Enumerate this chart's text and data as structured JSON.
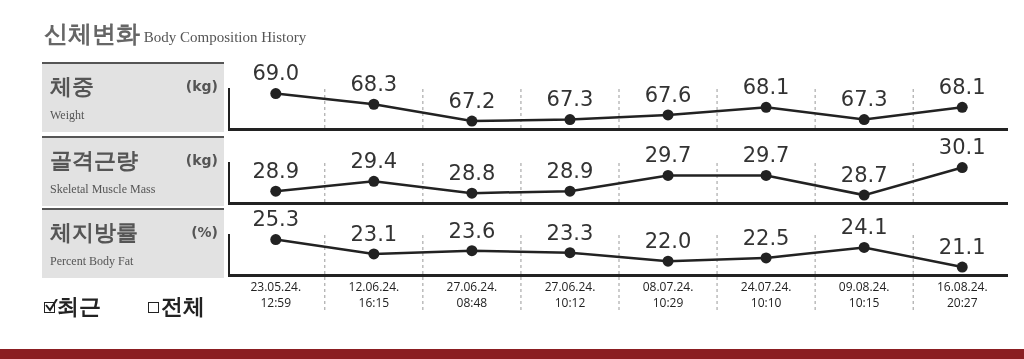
{
  "chart_data": [
    {
      "type": "line",
      "title": "신체변화",
      "subtitle": "Body Composition History",
      "ylabel": "체중",
      "annotations": [
        "(kg)",
        "Weight"
      ],
      "categories": [
        null,
        null,
        null,
        null,
        null,
        null,
        null,
        null
      ],
      "series": [
        {
          "color": "#222222",
          "values": [
            69.0,
            68.3,
            67.2,
            67.3,
            67.6,
            68.1,
            67.3,
            68.1
          ],
          "value_labels": [
            "69.0",
            "68.3",
            "67.2",
            "67.3",
            "67.6",
            "68.1",
            "67.3",
            "68.1"
          ]
        }
      ],
      "marker": "circle",
      "grid": "x",
      "tick_labels": false
    },
    {
      "type": "line",
      "ylabel": "골격근량",
      "annotations": [
        "(kg)",
        "Skeletal Muscle Mass"
      ],
      "categories": [
        null,
        null,
        null,
        null,
        null,
        null,
        null,
        null
      ],
      "series": [
        {
          "color": "#222222",
          "values": [
            28.9,
            29.4,
            28.8,
            28.9,
            29.7,
            29.7,
            28.7,
            30.1
          ],
          "value_labels": [
            "28.9",
            "29.4",
            "28.8",
            "28.9",
            "29.7",
            "29.7",
            "28.7",
            "30.1"
          ]
        }
      ],
      "marker": "circle",
      "grid": "x",
      "tick_labels": false
    },
    {
      "type": "line",
      "ylabel": "체지방률",
      "annotations": [
        "(%)",
        "Percent Body Fat",
        "최근",
        "전체"
      ],
      "categories": [
        "23.05.24.\n12:59",
        "12.06.24.\n16:15",
        "27.06.24.\n08:48",
        "27.06.24.\n10:12",
        "08.07.24.\n10:29",
        "24.07.24.\n10:10",
        "09.08.24.\n10:15",
        "16.08.24.\n20:27"
      ],
      "series": [
        {
          "color": "#222222",
          "values": [
            25.3,
            23.1,
            23.6,
            23.3,
            22.0,
            22.5,
            24.1,
            21.1
          ],
          "value_labels": [
            "25.3",
            "23.1",
            "23.6",
            "23.3",
            "22.0",
            "22.5",
            "24.1",
            "21.1"
          ]
        }
      ],
      "marker": "circle",
      "grid": "x",
      "tick_labels": "x"
    }
  ]
}
